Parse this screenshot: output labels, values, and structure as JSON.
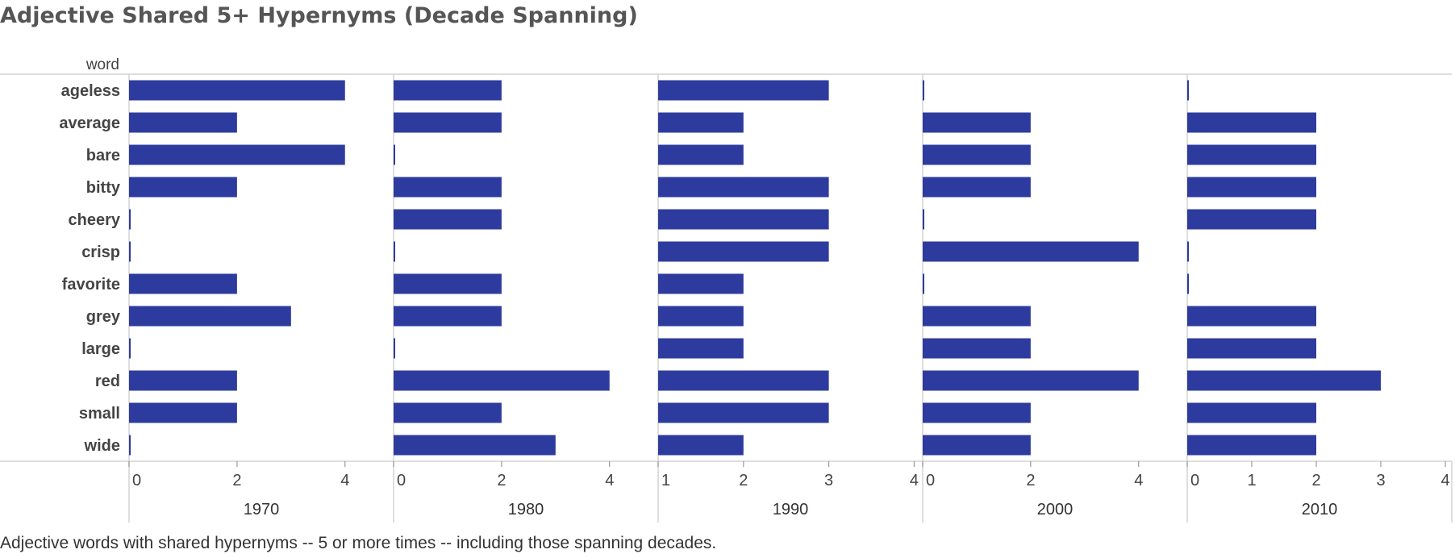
{
  "title": "Adjective Shared 5+ Hypernyms (Decade Spanning)",
  "caption": "Adjective words with shared hypernyms -- 5 or more times --  including those spanning decades.",
  "chart_data": {
    "type": "bar",
    "orientation": "horizontal",
    "row_header": "word",
    "categories": [
      "ageless",
      "average",
      "bare",
      "bitty",
      "cheery",
      "crisp",
      "favorite",
      "grey",
      "large",
      "red",
      "small",
      "wide"
    ],
    "bar_color": "#2e3b9e",
    "panels": [
      {
        "label": "1970",
        "xlim": [
          0,
          4.9
        ],
        "ticks": [
          "0",
          "2",
          "4"
        ],
        "tick_values": [
          0,
          2,
          4
        ],
        "values": [
          4,
          2,
          4,
          2,
          0,
          0,
          2,
          3,
          0,
          2,
          2,
          0
        ]
      },
      {
        "label": "1980",
        "xlim": [
          0,
          4.9
        ],
        "ticks": [
          "0",
          "2",
          "4"
        ],
        "tick_values": [
          0,
          2,
          4
        ],
        "values": [
          2,
          2,
          0,
          2,
          2,
          0,
          2,
          2,
          0,
          4,
          2,
          3
        ]
      },
      {
        "label": "1990",
        "xlim": [
          1,
          4.1
        ],
        "ticks": [
          "1",
          "2",
          "3",
          "4"
        ],
        "tick_values": [
          1,
          2,
          3,
          4
        ],
        "values": [
          3,
          2,
          2,
          3,
          3,
          3,
          2,
          2,
          2,
          3,
          3,
          2
        ]
      },
      {
        "label": "2000",
        "xlim": [
          0,
          4.9
        ],
        "ticks": [
          "0",
          "2",
          "4"
        ],
        "tick_values": [
          0,
          2,
          4
        ],
        "values": [
          0,
          2,
          2,
          2,
          0,
          4,
          0,
          2,
          2,
          4,
          2,
          2
        ]
      },
      {
        "label": "2010",
        "xlim": [
          0,
          4.1
        ],
        "ticks": [
          "0",
          "1",
          "2",
          "3",
          "4"
        ],
        "tick_values": [
          0,
          1,
          2,
          3,
          4
        ],
        "values": [
          0,
          2,
          2,
          2,
          2,
          0,
          0,
          2,
          2,
          3,
          2,
          2
        ]
      }
    ]
  }
}
